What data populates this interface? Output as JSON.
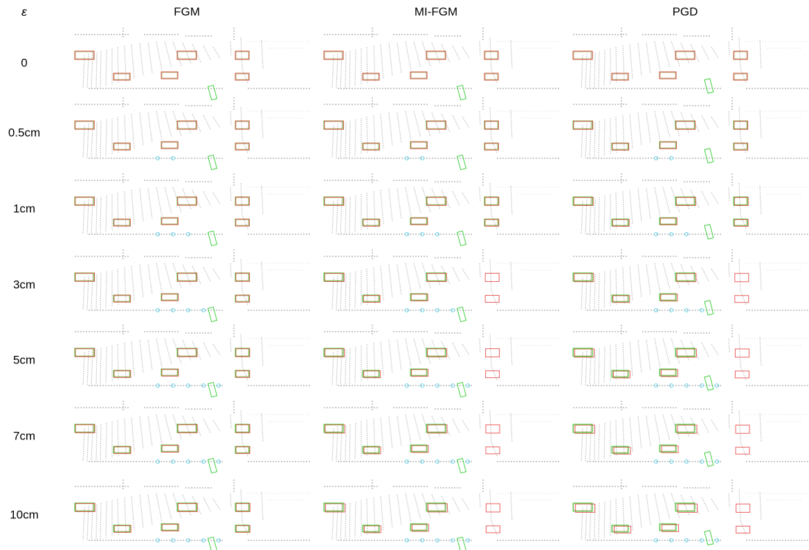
{
  "header": {
    "symbol": "ε",
    "columns": [
      "FGM",
      "MI-FGM",
      "PGD"
    ]
  },
  "rows": [
    "0",
    "0.5cm",
    "1cm",
    "3cm",
    "5cm",
    "7cm",
    "10cm"
  ]
}
